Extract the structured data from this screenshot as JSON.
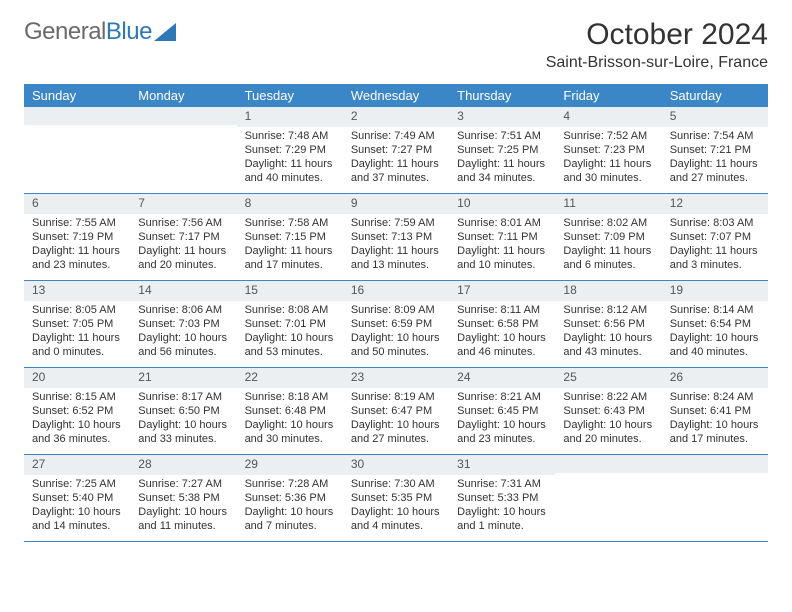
{
  "logo": {
    "text1": "General",
    "text2": "Blue"
  },
  "title": "October 2024",
  "location": "Saint-Brisson-sur-Loire, France",
  "colors": {
    "header_bg": "#3b86c6",
    "header_text": "#ffffff",
    "daynum_bg": "#eceff1",
    "border": "#3b86c6",
    "body_text": "#333333",
    "logo_gray": "#6a6a6a",
    "logo_blue": "#2f78b7"
  },
  "dow": [
    "Sunday",
    "Monday",
    "Tuesday",
    "Wednesday",
    "Thursday",
    "Friday",
    "Saturday"
  ],
  "weeks": [
    [
      {
        "n": "",
        "sr": "",
        "ss": "",
        "dl": ""
      },
      {
        "n": "",
        "sr": "",
        "ss": "",
        "dl": ""
      },
      {
        "n": "1",
        "sr": "Sunrise: 7:48 AM",
        "ss": "Sunset: 7:29 PM",
        "dl": "Daylight: 11 hours and 40 minutes."
      },
      {
        "n": "2",
        "sr": "Sunrise: 7:49 AM",
        "ss": "Sunset: 7:27 PM",
        "dl": "Daylight: 11 hours and 37 minutes."
      },
      {
        "n": "3",
        "sr": "Sunrise: 7:51 AM",
        "ss": "Sunset: 7:25 PM",
        "dl": "Daylight: 11 hours and 34 minutes."
      },
      {
        "n": "4",
        "sr": "Sunrise: 7:52 AM",
        "ss": "Sunset: 7:23 PM",
        "dl": "Daylight: 11 hours and 30 minutes."
      },
      {
        "n": "5",
        "sr": "Sunrise: 7:54 AM",
        "ss": "Sunset: 7:21 PM",
        "dl": "Daylight: 11 hours and 27 minutes."
      }
    ],
    [
      {
        "n": "6",
        "sr": "Sunrise: 7:55 AM",
        "ss": "Sunset: 7:19 PM",
        "dl": "Daylight: 11 hours and 23 minutes."
      },
      {
        "n": "7",
        "sr": "Sunrise: 7:56 AM",
        "ss": "Sunset: 7:17 PM",
        "dl": "Daylight: 11 hours and 20 minutes."
      },
      {
        "n": "8",
        "sr": "Sunrise: 7:58 AM",
        "ss": "Sunset: 7:15 PM",
        "dl": "Daylight: 11 hours and 17 minutes."
      },
      {
        "n": "9",
        "sr": "Sunrise: 7:59 AM",
        "ss": "Sunset: 7:13 PM",
        "dl": "Daylight: 11 hours and 13 minutes."
      },
      {
        "n": "10",
        "sr": "Sunrise: 8:01 AM",
        "ss": "Sunset: 7:11 PM",
        "dl": "Daylight: 11 hours and 10 minutes."
      },
      {
        "n": "11",
        "sr": "Sunrise: 8:02 AM",
        "ss": "Sunset: 7:09 PM",
        "dl": "Daylight: 11 hours and 6 minutes."
      },
      {
        "n": "12",
        "sr": "Sunrise: 8:03 AM",
        "ss": "Sunset: 7:07 PM",
        "dl": "Daylight: 11 hours and 3 minutes."
      }
    ],
    [
      {
        "n": "13",
        "sr": "Sunrise: 8:05 AM",
        "ss": "Sunset: 7:05 PM",
        "dl": "Daylight: 11 hours and 0 minutes."
      },
      {
        "n": "14",
        "sr": "Sunrise: 8:06 AM",
        "ss": "Sunset: 7:03 PM",
        "dl": "Daylight: 10 hours and 56 minutes."
      },
      {
        "n": "15",
        "sr": "Sunrise: 8:08 AM",
        "ss": "Sunset: 7:01 PM",
        "dl": "Daylight: 10 hours and 53 minutes."
      },
      {
        "n": "16",
        "sr": "Sunrise: 8:09 AM",
        "ss": "Sunset: 6:59 PM",
        "dl": "Daylight: 10 hours and 50 minutes."
      },
      {
        "n": "17",
        "sr": "Sunrise: 8:11 AM",
        "ss": "Sunset: 6:58 PM",
        "dl": "Daylight: 10 hours and 46 minutes."
      },
      {
        "n": "18",
        "sr": "Sunrise: 8:12 AM",
        "ss": "Sunset: 6:56 PM",
        "dl": "Daylight: 10 hours and 43 minutes."
      },
      {
        "n": "19",
        "sr": "Sunrise: 8:14 AM",
        "ss": "Sunset: 6:54 PM",
        "dl": "Daylight: 10 hours and 40 minutes."
      }
    ],
    [
      {
        "n": "20",
        "sr": "Sunrise: 8:15 AM",
        "ss": "Sunset: 6:52 PM",
        "dl": "Daylight: 10 hours and 36 minutes."
      },
      {
        "n": "21",
        "sr": "Sunrise: 8:17 AM",
        "ss": "Sunset: 6:50 PM",
        "dl": "Daylight: 10 hours and 33 minutes."
      },
      {
        "n": "22",
        "sr": "Sunrise: 8:18 AM",
        "ss": "Sunset: 6:48 PM",
        "dl": "Daylight: 10 hours and 30 minutes."
      },
      {
        "n": "23",
        "sr": "Sunrise: 8:19 AM",
        "ss": "Sunset: 6:47 PM",
        "dl": "Daylight: 10 hours and 27 minutes."
      },
      {
        "n": "24",
        "sr": "Sunrise: 8:21 AM",
        "ss": "Sunset: 6:45 PM",
        "dl": "Daylight: 10 hours and 23 minutes."
      },
      {
        "n": "25",
        "sr": "Sunrise: 8:22 AM",
        "ss": "Sunset: 6:43 PM",
        "dl": "Daylight: 10 hours and 20 minutes."
      },
      {
        "n": "26",
        "sr": "Sunrise: 8:24 AM",
        "ss": "Sunset: 6:41 PM",
        "dl": "Daylight: 10 hours and 17 minutes."
      }
    ],
    [
      {
        "n": "27",
        "sr": "Sunrise: 7:25 AM",
        "ss": "Sunset: 5:40 PM",
        "dl": "Daylight: 10 hours and 14 minutes."
      },
      {
        "n": "28",
        "sr": "Sunrise: 7:27 AM",
        "ss": "Sunset: 5:38 PM",
        "dl": "Daylight: 10 hours and 11 minutes."
      },
      {
        "n": "29",
        "sr": "Sunrise: 7:28 AM",
        "ss": "Sunset: 5:36 PM",
        "dl": "Daylight: 10 hours and 7 minutes."
      },
      {
        "n": "30",
        "sr": "Sunrise: 7:30 AM",
        "ss": "Sunset: 5:35 PM",
        "dl": "Daylight: 10 hours and 4 minutes."
      },
      {
        "n": "31",
        "sr": "Sunrise: 7:31 AM",
        "ss": "Sunset: 5:33 PM",
        "dl": "Daylight: 10 hours and 1 minute."
      },
      {
        "n": "",
        "sr": "",
        "ss": "",
        "dl": ""
      },
      {
        "n": "",
        "sr": "",
        "ss": "",
        "dl": ""
      }
    ]
  ]
}
